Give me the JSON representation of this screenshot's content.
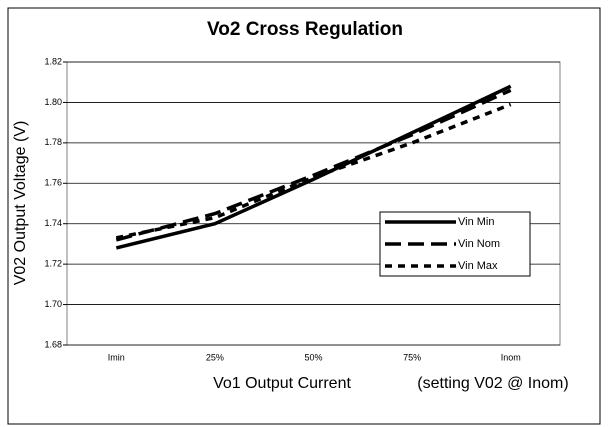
{
  "chart_data": {
    "type": "line",
    "title": "Vo2 Cross Regulation",
    "xlabel": "Vo1 Output Current",
    "annotation": "(setting V02 @ Inom)",
    "ylabel": "V02 Output Voltage (V)",
    "categories": [
      "Imin",
      "25%",
      "50%",
      "75%",
      "Inom"
    ],
    "series": [
      {
        "name": "Vin Min",
        "color": "#000000",
        "dash": "solid",
        "values": [
          1.728,
          1.74,
          1.762,
          1.785,
          1.808
        ]
      },
      {
        "name": "Vin Nom",
        "color": "#000000",
        "dash": "long",
        "values": [
          1.732,
          1.745,
          1.764,
          1.784,
          1.806
        ]
      },
      {
        "name": "Vin Max",
        "color": "#000000",
        "dash": "short",
        "values": [
          1.733,
          1.743,
          1.763,
          1.78,
          1.799
        ]
      }
    ],
    "ylim": [
      1.68,
      1.82
    ],
    "yticks": [
      {
        "value": 1.68,
        "label": "1.68"
      },
      {
        "value": 1.7,
        "label": "1.70"
      },
      1.72,
      1.74,
      1.76,
      1.78,
      {
        "value": 1.8,
        "label": "1.80"
      },
      1.82
    ],
    "grid": true,
    "legend": "right"
  }
}
